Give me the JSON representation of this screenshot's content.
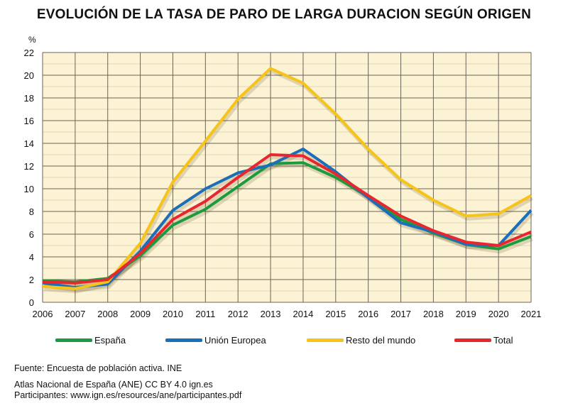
{
  "chart_data": {
    "type": "line",
    "title": "EVOLUCIÓN DE LA TASA DE PARO DE LARGA DURACION SEGÚN ORIGEN",
    "ylabel": "%",
    "xlabel": "",
    "x": [
      2006,
      2007,
      2008,
      2009,
      2010,
      2011,
      2012,
      2013,
      2014,
      2015,
      2016,
      2017,
      2018,
      2019,
      2020,
      2021
    ],
    "ylim": [
      0,
      22
    ],
    "yticks": [
      0,
      2,
      4,
      6,
      8,
      10,
      12,
      14,
      16,
      18,
      20,
      22
    ],
    "grid": true,
    "legend": "bottom",
    "background": "#fcf2d4",
    "series": [
      {
        "name": "España",
        "color": "#1e9a3e",
        "values": [
          1.9,
          1.8,
          2.1,
          4.1,
          6.8,
          8.2,
          10.2,
          12.2,
          12.3,
          11.0,
          9.3,
          7.3,
          6.1,
          5.1,
          4.7,
          5.8
        ]
      },
      {
        "name": "Unión Europea",
        "color": "#1a6fba",
        "values": [
          1.7,
          1.3,
          1.6,
          4.5,
          8.1,
          10.0,
          11.4,
          12.1,
          13.5,
          11.5,
          9.2,
          7.0,
          6.2,
          5.1,
          5.0,
          8.1
        ]
      },
      {
        "name": "Resto del mundo",
        "color": "#f6c318",
        "values": [
          1.4,
          1.2,
          1.8,
          5.2,
          10.6,
          14.2,
          17.9,
          20.6,
          19.3,
          16.6,
          13.5,
          10.8,
          9.0,
          7.6,
          7.8,
          9.4
        ]
      },
      {
        "name": "Total",
        "color": "#e8262d",
        "values": [
          1.8,
          1.7,
          2.0,
          4.3,
          7.3,
          8.9,
          11.0,
          13.0,
          12.9,
          11.3,
          9.4,
          7.6,
          6.3,
          5.3,
          5.0,
          6.2
        ]
      }
    ]
  },
  "footer": {
    "source": "Fuente: Encuesta de población activa. INE",
    "credit": "Atlas Nacional de España (ANE) CC BY 4.0 ign.es",
    "participants": "Participantes: www.ign.es/resources/ane/participantes.pdf"
  }
}
